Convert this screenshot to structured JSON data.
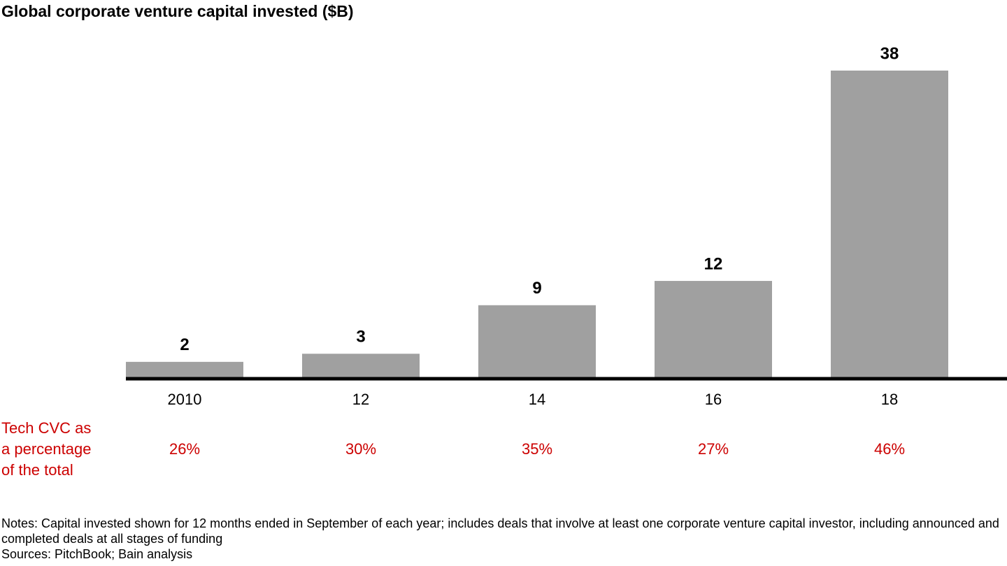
{
  "chart_data": {
    "type": "bar",
    "title": "Global corporate venture capital invested ($B)",
    "categories": [
      "2010",
      "12",
      "14",
      "16",
      "18"
    ],
    "values": [
      2,
      3,
      9,
      12,
      38
    ],
    "color": "#a0a0a0",
    "share_label_lines": [
      "Tech CVC as",
      "a percentage",
      "of the total"
    ],
    "share_values": [
      26,
      30,
      35,
      27,
      46
    ],
    "share_value_labels": [
      "26%",
      "30%",
      "35%",
      "27%",
      "46%"
    ],
    "share_color": "#cc0000",
    "notes": "Notes: Capital invested shown for 12 months ended in September of each year; includes deals that involve at least one corporate venture capital investor, including announced and completed deals at all stages of funding",
    "sources": "Sources: PitchBook; Bain analysis"
  }
}
